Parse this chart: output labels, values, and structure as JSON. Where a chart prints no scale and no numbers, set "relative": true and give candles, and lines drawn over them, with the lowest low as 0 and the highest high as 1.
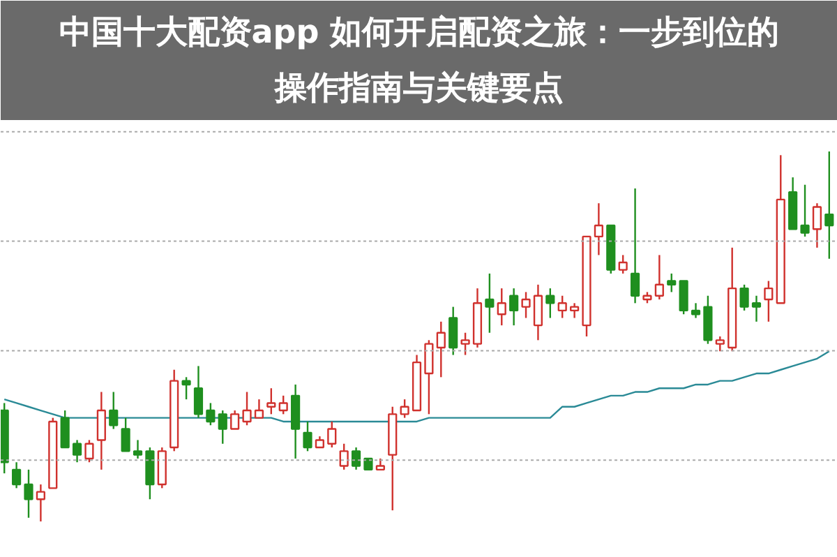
{
  "chart_data": {
    "type": "candlestick",
    "title": "中国十大配资app 如何开启配资之旅：一步到位的操作指南与关键要点",
    "relative": true,
    "grid": true,
    "categories": [
      null,
      null,
      null,
      null,
      null,
      null,
      null,
      null,
      null,
      null,
      null,
      null,
      null,
      null,
      null,
      null,
      null,
      null,
      null,
      null,
      null,
      null,
      null,
      null,
      null,
      null,
      null,
      null,
      null,
      null,
      null,
      null,
      null,
      null,
      null,
      null,
      null,
      null,
      null,
      null,
      null,
      null,
      null,
      null,
      null,
      null,
      null,
      null,
      null,
      null,
      null,
      null,
      null,
      null,
      null,
      null,
      null,
      null,
      null,
      null,
      null,
      null,
      null,
      null,
      null,
      null,
      null,
      null,
      null
    ],
    "ohlc": [
      [
        0.3,
        0.32,
        0.13,
        0.16
      ],
      [
        0.14,
        0.16,
        0.09,
        0.1
      ],
      [
        0.1,
        0.14,
        0.01,
        0.06
      ],
      [
        0.06,
        0.1,
        0.0,
        0.08
      ],
      [
        0.09,
        0.28,
        0.09,
        0.27
      ],
      [
        0.28,
        0.3,
        0.2,
        0.2
      ],
      [
        0.21,
        0.22,
        0.16,
        0.18
      ],
      [
        0.17,
        0.22,
        0.16,
        0.21
      ],
      [
        0.22,
        0.35,
        0.14,
        0.3
      ],
      [
        0.3,
        0.35,
        0.25,
        0.26
      ],
      [
        0.25,
        0.28,
        0.19,
        0.19
      ],
      [
        0.19,
        0.22,
        0.17,
        0.18
      ],
      [
        0.19,
        0.2,
        0.06,
        0.1
      ],
      [
        0.1,
        0.2,
        0.09,
        0.19
      ],
      [
        0.2,
        0.41,
        0.19,
        0.38
      ],
      [
        0.38,
        0.39,
        0.33,
        0.37
      ],
      [
        0.36,
        0.42,
        0.28,
        0.29
      ],
      [
        0.3,
        0.32,
        0.26,
        0.27
      ],
      [
        0.29,
        0.3,
        0.21,
        0.25
      ],
      [
        0.25,
        0.3,
        0.25,
        0.29
      ],
      [
        0.27,
        0.35,
        0.26,
        0.3
      ],
      [
        0.28,
        0.33,
        0.28,
        0.3
      ],
      [
        0.31,
        0.36,
        0.29,
        0.32
      ],
      [
        0.3,
        0.34,
        0.29,
        0.32
      ],
      [
        0.34,
        0.37,
        0.17,
        0.25
      ],
      [
        0.24,
        0.27,
        0.19,
        0.2
      ],
      [
        0.2,
        0.23,
        0.2,
        0.22
      ],
      [
        0.21,
        0.27,
        0.2,
        0.25
      ],
      [
        0.15,
        0.21,
        0.14,
        0.19
      ],
      [
        0.19,
        0.2,
        0.14,
        0.15
      ],
      [
        0.17,
        0.17,
        0.14,
        0.14
      ],
      [
        0.14,
        0.17,
        0.14,
        0.15
      ],
      [
        0.18,
        0.31,
        0.03,
        0.29
      ],
      [
        0.29,
        0.33,
        0.28,
        0.31
      ],
      [
        0.3,
        0.45,
        0.3,
        0.43
      ],
      [
        0.4,
        0.49,
        0.29,
        0.48
      ],
      [
        0.47,
        0.54,
        0.39,
        0.51
      ],
      [
        0.55,
        0.58,
        0.45,
        0.47
      ],
      [
        0.48,
        0.51,
        0.45,
        0.49
      ],
      [
        0.48,
        0.63,
        0.47,
        0.59
      ],
      [
        0.6,
        0.67,
        0.51,
        0.58
      ],
      [
        0.56,
        0.63,
        0.53,
        0.59
      ],
      [
        0.61,
        0.63,
        0.53,
        0.57
      ],
      [
        0.58,
        0.62,
        0.55,
        0.6
      ],
      [
        0.53,
        0.64,
        0.49,
        0.61
      ],
      [
        0.61,
        0.63,
        0.55,
        0.59
      ],
      [
        0.57,
        0.61,
        0.55,
        0.59
      ],
      [
        0.57,
        0.59,
        0.55,
        0.58
      ],
      [
        0.53,
        0.77,
        0.5,
        0.77
      ],
      [
        0.77,
        0.86,
        0.72,
        0.8
      ],
      [
        0.8,
        0.8,
        0.67,
        0.68
      ],
      [
        0.68,
        0.72,
        0.67,
        0.7
      ],
      [
        0.67,
        0.9,
        0.59,
        0.61
      ],
      [
        0.6,
        0.62,
        0.59,
        0.61
      ],
      [
        0.61,
        0.72,
        0.6,
        0.64
      ],
      [
        0.65,
        0.67,
        0.62,
        0.64
      ],
      [
        0.65,
        0.65,
        0.56,
        0.57
      ],
      [
        0.57,
        0.59,
        0.55,
        0.56
      ],
      [
        0.58,
        0.61,
        0.48,
        0.49
      ],
      [
        0.48,
        0.5,
        0.46,
        0.49
      ],
      [
        0.47,
        0.74,
        0.46,
        0.63
      ],
      [
        0.63,
        0.64,
        0.57,
        0.58
      ],
      [
        0.59,
        0.61,
        0.54,
        0.58
      ],
      [
        0.6,
        0.65,
        0.54,
        0.63
      ],
      [
        0.59,
        0.99,
        0.59,
        0.87
      ],
      [
        0.89,
        0.93,
        0.79,
        0.79
      ],
      [
        0.8,
        0.91,
        0.77,
        0.78
      ],
      [
        0.79,
        0.86,
        0.74,
        0.85
      ],
      [
        0.83,
        1.0,
        0.71,
        0.8
      ]
    ],
    "colors": [
      "#1f8f1f",
      "#1f8f1f",
      "#1f8f1f",
      "#d0312d",
      "#d0312d",
      "#1f8f1f",
      "#1f8f1f",
      "#d0312d",
      "#d0312d",
      "#1f8f1f",
      "#1f8f1f",
      "#1f8f1f",
      "#1f8f1f",
      "#d0312d",
      "#d0312d",
      "#1f8f1f",
      "#1f8f1f",
      "#1f8f1f",
      "#1f8f1f",
      "#d0312d",
      "#d0312d",
      "#d0312d",
      "#d0312d",
      "#d0312d",
      "#1f8f1f",
      "#1f8f1f",
      "#d0312d",
      "#d0312d",
      "#d0312d",
      "#1f8f1f",
      "#1f8f1f",
      "#d0312d",
      "#d0312d",
      "#d0312d",
      "#d0312d",
      "#d0312d",
      "#d0312d",
      "#1f8f1f",
      "#d0312d",
      "#d0312d",
      "#1f8f1f",
      "#d0312d",
      "#1f8f1f",
      "#d0312d",
      "#d0312d",
      "#1f8f1f",
      "#d0312d",
      "#d0312d",
      "#d0312d",
      "#d0312d",
      "#1f8f1f",
      "#d0312d",
      "#1f8f1f",
      "#d0312d",
      "#d0312d",
      "#1f8f1f",
      "#1f8f1f",
      "#1f8f1f",
      "#1f8f1f",
      "#d0312d",
      "#d0312d",
      "#1f8f1f",
      "#1f8f1f",
      "#d0312d",
      "#d0312d",
      "#1f8f1f",
      "#1f8f1f",
      "#d0312d",
      "#1f8f1f"
    ],
    "series": [
      {
        "type": "line",
        "color": "#2a8a96",
        "values": [
          0.33,
          0.32,
          0.31,
          0.3,
          0.29,
          0.28,
          0.28,
          0.28,
          0.28,
          0.28,
          0.28,
          0.28,
          0.28,
          0.28,
          0.28,
          0.28,
          0.28,
          0.28,
          0.28,
          0.28,
          0.28,
          0.28,
          0.28,
          0.27,
          0.27,
          0.27,
          0.27,
          0.27,
          0.27,
          0.27,
          0.27,
          0.27,
          0.27,
          0.27,
          0.27,
          0.28,
          0.28,
          0.28,
          0.28,
          0.28,
          0.28,
          0.28,
          0.28,
          0.28,
          0.28,
          0.28,
          0.31,
          0.31,
          0.32,
          0.33,
          0.34,
          0.34,
          0.35,
          0.35,
          0.36,
          0.36,
          0.36,
          0.37,
          0.37,
          0.38,
          0.38,
          0.39,
          0.4,
          0.4,
          0.41,
          0.42,
          0.43,
          0.44,
          0.46
        ]
      }
    ]
  }
}
